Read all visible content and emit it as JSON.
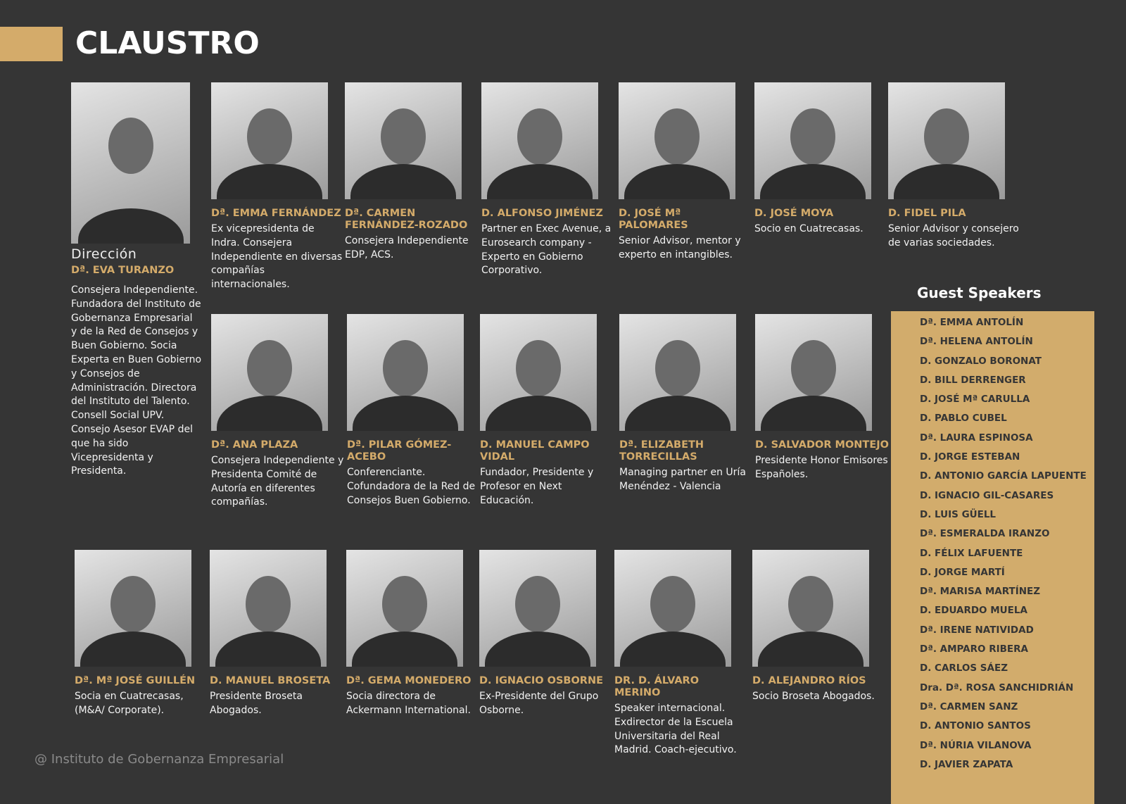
{
  "header": {
    "title": "CLAUSTRO",
    "accent": "#d4ab6a"
  },
  "direction": {
    "role": "Dirección",
    "name": "Dª. EVA TURANZO",
    "desc": "Consejera Independiente. Fundadora del Instituto de Gobernanza Empresarial y de la Red de Consejos y Buen Gobierno. Socia Experta en Buen Gobierno y Consejos de Administración. Directora del Instituto del Talento. Consell Social UPV. Consejo Asesor EVAP del que ha sido Vicepresidenta y Presidenta."
  },
  "faculty": [
    {
      "name": "Dª. EMMA FERNÁNDEZ",
      "desc": "Ex vicepresidenta de Indra. Consejera Independiente en diversas compañías internacionales."
    },
    {
      "name": "Dª. CARMEN FERNÁNDEZ-ROZADO",
      "desc": "Consejera Independiente EDP, ACS."
    },
    {
      "name": "D. ALFONSO JIMÉNEZ",
      "desc": "Partner en Exec Avenue, a Eurosearch company - Experto en Gobierno Corporativo."
    },
    {
      "name": "D. JOSÉ Mª PALOMARES",
      "desc": "Senior Advisor, mentor y experto en intangibles."
    },
    {
      "name": "D.  JOSÉ MOYA",
      "desc": "Socio en Cuatrecasas."
    },
    {
      "name": "D. FIDEL PILA",
      "desc": "Senior Advisor y consejero de varias sociedades."
    },
    {
      "name": "Dª. ANA PLAZA",
      "desc": "Consejera Independiente y Presidenta Comité de Autoría en diferentes compañías."
    },
    {
      "name": "Dª. PILAR GÓMEZ-ACEBO",
      "desc": "Conferenciante. Cofundadora de la Red de Consejos Buen Gobierno."
    },
    {
      "name": "D. MANUEL CAMPO VIDAL",
      "desc": "Fundador, Presidente y Profesor en Next Educación."
    },
    {
      "name": "Dª. ELIZABETH TORRECILLAS",
      "desc": "Managing partner en Uría Menéndez - Valencia"
    },
    {
      "name": "D. SALVADOR MONTEJO",
      "desc": "Presidente Honor Emisores Españoles."
    },
    {
      "name": "Dª. Mª JOSÉ GUILLÉN",
      "desc": "Socia en Cuatrecasas, (M&A/ Corporate)."
    },
    {
      "name": "D. MANUEL BROSETA",
      "desc": "Presidente  Broseta Abogados."
    },
    {
      "name": "Dª. GEMA MONEDERO",
      "desc": "Socia directora de Ackermann International."
    },
    {
      "name": "D. IGNACIO OSBORNE",
      "desc": "Ex-Presidente del Grupo Osborne."
    },
    {
      "name": "Dr. D. ÁLVARO MERINO",
      "desc": "Speaker internacional. Exdirector de la Escuela Universitaria del Real Madrid. Coach-ejecutivo."
    },
    {
      "name": "D. ALEJANDRO RÍOS",
      "desc": "Socio Broseta Abogados."
    }
  ],
  "guest_speakers": {
    "title": "Guest Speakers",
    "items": [
      "Dª. EMMA ANTOLÍN",
      "Dª. HELENA ANTOLÍN",
      "D. GONZALO BORONAT",
      "D. BILL DERRENGER",
      "D. JOSÉ Mª CARULLA",
      "D. PABLO CUBEL",
      "Dª. LAURA ESPINOSA",
      "D. JORGE ESTEBAN",
      "D. ANTONIO GARCÍA LAPUENTE",
      "D. IGNACIO GIL-CASARES",
      "D. LUIS GÜELL",
      "Dª. ESMERALDA IRANZO",
      "D. FÉLIX LAFUENTE",
      "D. JORGE MARTÍ",
      "Dª. MARISA MARTÍNEZ",
      "D. EDUARDO MUELA",
      "Dª. IRENE NATIVIDAD",
      "Dª. AMPARO RIBERA",
      "D. CARLOS SÁEZ",
      "Dra. Dª. ROSA SANCHIDRIÁN",
      "Dª. CARMEN SANZ",
      "D. ANTONIO SANTOS",
      "Dª. NÚRIA VILANOVA",
      "D. JAVIER ZAPATA"
    ]
  },
  "footer": "@ Instituto de Gobernanza Empresarial"
}
